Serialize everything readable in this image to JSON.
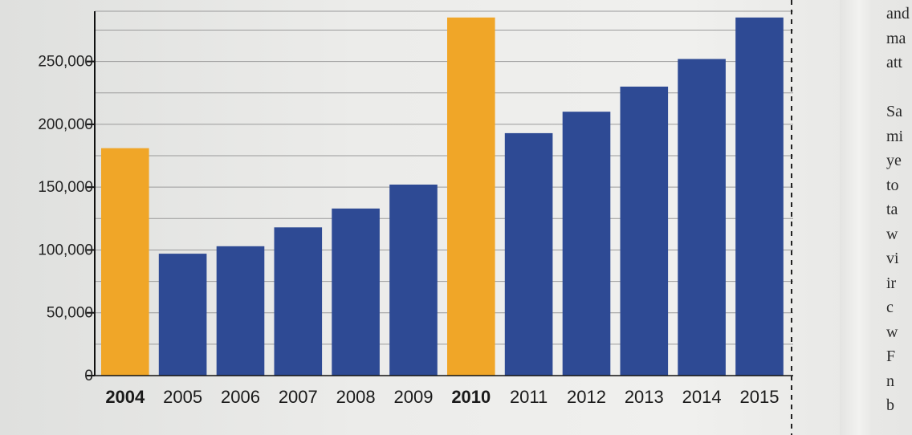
{
  "chart_data": {
    "type": "bar",
    "categories": [
      "2004",
      "2005",
      "2006",
      "2007",
      "2008",
      "2009",
      "2010",
      "2011",
      "2012",
      "2013",
      "2014",
      "2015"
    ],
    "values": [
      181000,
      97000,
      103000,
      118000,
      133000,
      152000,
      285000,
      193000,
      210000,
      230000,
      252000,
      285000
    ],
    "highlighted": [
      "2004",
      "2010"
    ],
    "ylim": [
      0,
      290000
    ],
    "yticks": [
      {
        "value": 0,
        "label": "0"
      },
      {
        "value": 50000,
        "label": "50,000"
      },
      {
        "value": 100000,
        "label": "100,000"
      },
      {
        "value": 150000,
        "label": "150,000"
      },
      {
        "value": 200000,
        "label": "200,000"
      },
      {
        "value": 250000,
        "label": "250,000"
      }
    ],
    "grid": true,
    "colors": {
      "default": "#2e4a94",
      "highlight": "#f0a628"
    }
  },
  "side_text": [
    "and",
    "ma",
    "att",
    "",
    "Sa",
    "mi",
    "ye",
    "to",
    "ta",
    "w",
    "vi",
    "ir",
    "c",
    "w",
    "F",
    "n",
    "b"
  ]
}
